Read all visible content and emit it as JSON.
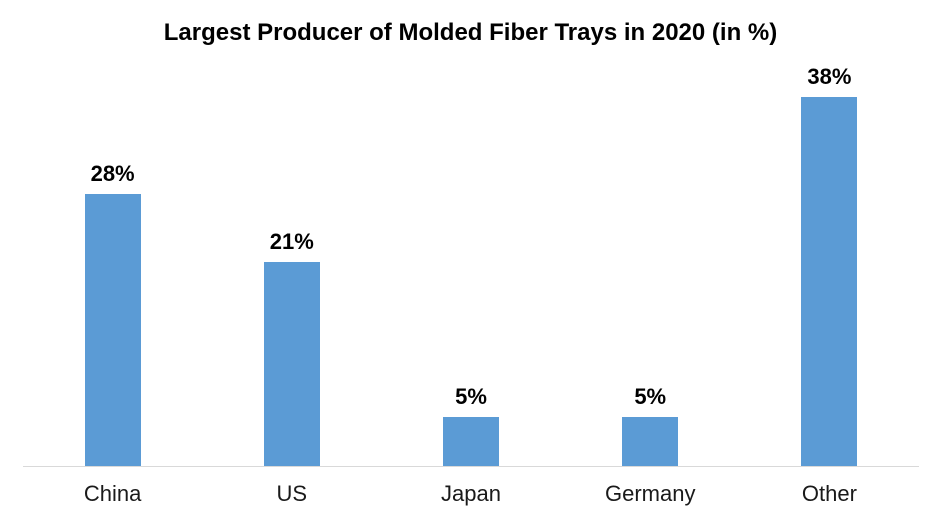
{
  "chart_data": {
    "type": "bar",
    "title": "Largest Producer of Molded Fiber Trays in 2020 (in %)",
    "categories": [
      "China",
      "US",
      "Japan",
      "Germany",
      "Other"
    ],
    "values": [
      28,
      21,
      5,
      5,
      38
    ],
    "data_labels": [
      "28%",
      "21%",
      "5%",
      "5%",
      "38%"
    ],
    "xlabel": "",
    "ylabel": "",
    "ylim": [
      0,
      42
    ],
    "grid": false,
    "legend": "none",
    "bar_color": "#5B9BD5",
    "axis_line_color": "#D9D9D9",
    "title_color": "#000000",
    "label_color": "#000000",
    "category_color": "#1A1A1A",
    "background_color": "#FFFFFF"
  }
}
